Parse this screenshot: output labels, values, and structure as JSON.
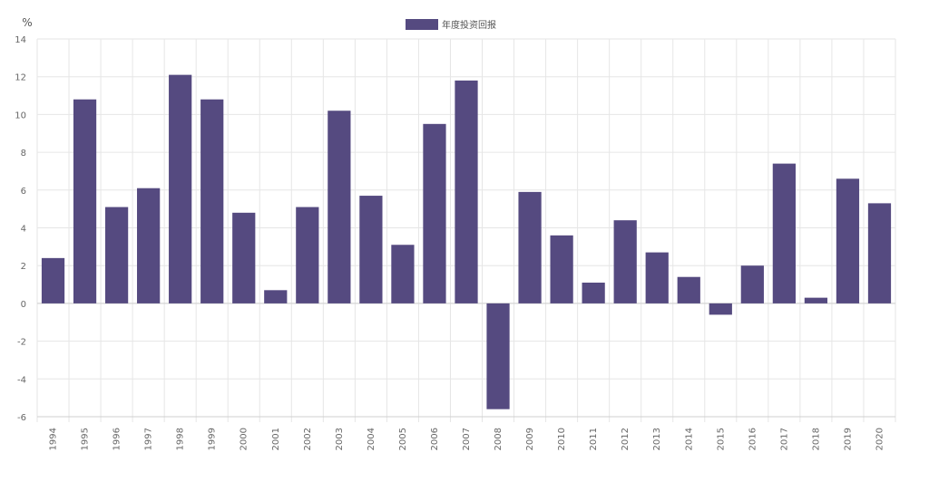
{
  "chart_data": {
    "type": "bar",
    "y_unit": "%",
    "legend_position": "top-center",
    "grid": true,
    "ylim": [
      -6,
      14
    ],
    "y_ticks": [
      14,
      12,
      10,
      8,
      6,
      4,
      2,
      0,
      -2,
      -4,
      -6
    ],
    "categories": [
      "1994",
      "1995",
      "1996",
      "1997",
      "1998",
      "1999",
      "2000",
      "2001",
      "2002",
      "2003",
      "2004",
      "2005",
      "2006",
      "2007",
      "2008",
      "2009",
      "2010",
      "2011",
      "2012",
      "2013",
      "2014",
      "2015",
      "2016",
      "2017",
      "2018",
      "2019",
      "2020"
    ],
    "series": [
      {
        "name": "年度投资回报",
        "color": "#554a80",
        "values": [
          2.4,
          10.8,
          5.1,
          6.1,
          12.1,
          10.8,
          4.8,
          0.7,
          5.1,
          10.2,
          5.7,
          3.1,
          9.5,
          11.8,
          -5.6,
          5.9,
          3.6,
          1.1,
          4.4,
          2.7,
          1.4,
          -0.6,
          2.0,
          7.4,
          0.3,
          6.6,
          5.3
        ]
      }
    ]
  }
}
